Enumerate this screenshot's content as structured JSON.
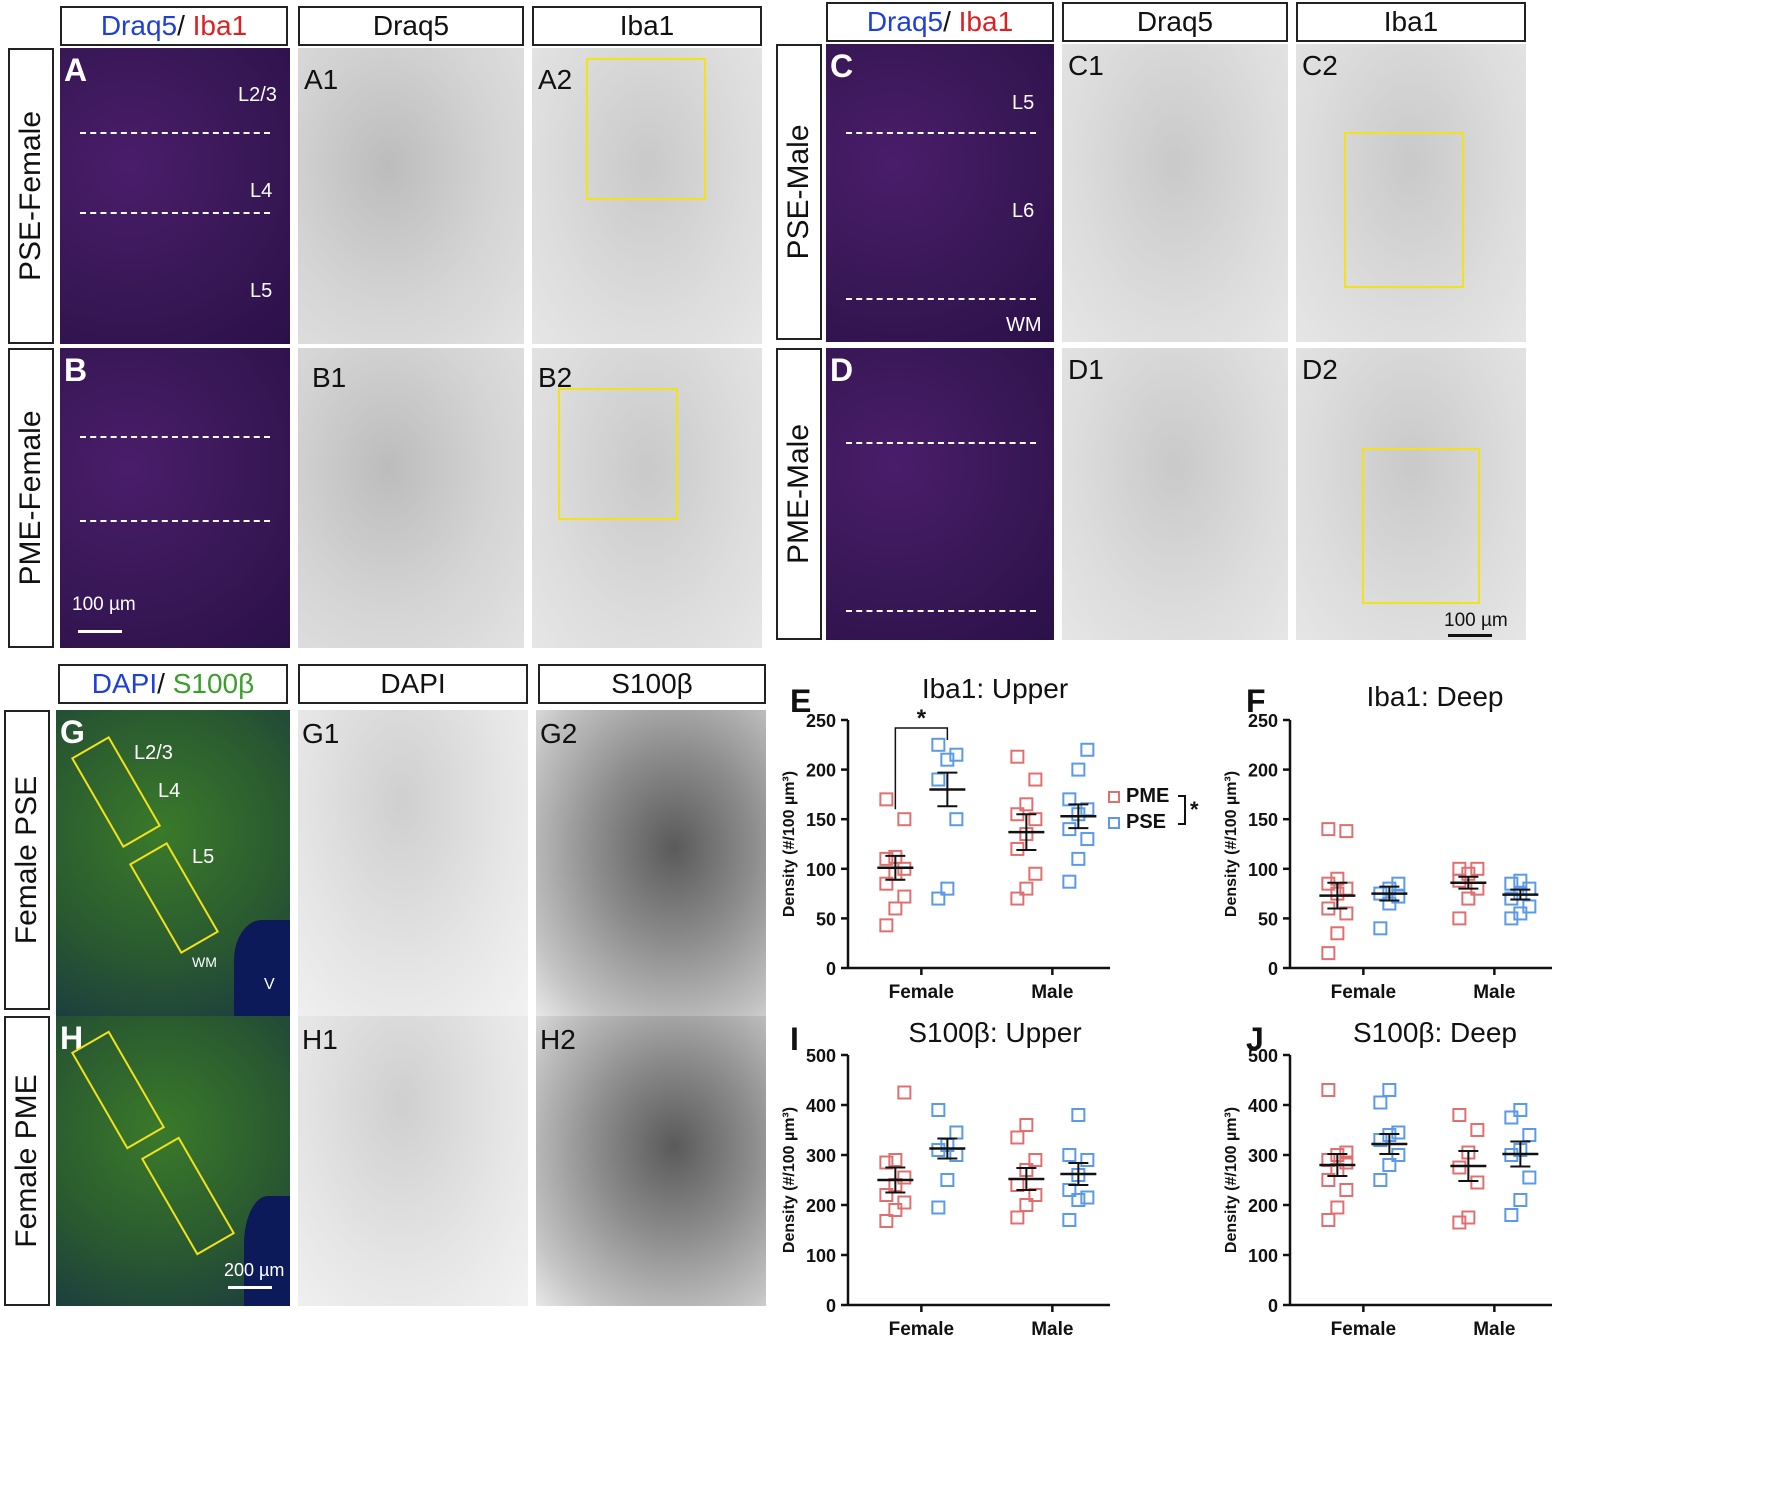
{
  "top_left": {
    "headers": [
      {
        "parts": [
          {
            "text": "Draq5",
            "color": "#1f3fd6"
          },
          {
            "text": "/ ",
            "color": "#111111"
          },
          {
            "text": "Iba1",
            "color": "#e02020"
          }
        ]
      },
      {
        "text": "Draq5"
      },
      {
        "text": "Iba1"
      }
    ],
    "rows": [
      {
        "label": "PSE-Female",
        "panels": [
          "A",
          "A1",
          "A2"
        ],
        "layers": [
          "L2/3",
          "L4",
          "L5"
        ]
      },
      {
        "label": "PME-Female",
        "panels": [
          "B",
          "B1",
          "B2"
        ],
        "layers": []
      }
    ],
    "scale": "100 µm"
  },
  "top_right": {
    "headers": [
      {
        "parts": [
          {
            "text": "Draq5",
            "color": "#1f3fd6"
          },
          {
            "text": "/ ",
            "color": "#111111"
          },
          {
            "text": "Iba1",
            "color": "#e02020"
          }
        ]
      },
      {
        "text": "Draq5"
      },
      {
        "text": "Iba1"
      }
    ],
    "rows": [
      {
        "label": "PSE-Male",
        "panels": [
          "C",
          "C1",
          "C2"
        ],
        "layers": [
          "L5",
          "L6",
          "WM"
        ]
      },
      {
        "label": "PME-Male",
        "panels": [
          "D",
          "D1",
          "D2"
        ],
        "layers": []
      }
    ],
    "scale": "100 µm"
  },
  "bottom_left": {
    "headers": [
      {
        "parts": [
          {
            "text": "DAPI",
            "color": "#1f3fd6"
          },
          {
            "text": "/ ",
            "color": "#111111"
          },
          {
            "text": "S100β",
            "color": "#3aa02a"
          }
        ]
      },
      {
        "text": "DAPI"
      },
      {
        "text": "S100β"
      }
    ],
    "rows": [
      {
        "label": "Female PSE",
        "panels": [
          "G",
          "G1",
          "G2"
        ],
        "layers": [
          "L2/3",
          "L4",
          "L5",
          "WM",
          "V"
        ]
      },
      {
        "label": "Female PME",
        "panels": [
          "H",
          "H1",
          "H2"
        ],
        "layers": []
      }
    ],
    "scale": "200 µm"
  },
  "legend": {
    "items": [
      {
        "name": "PME",
        "color": "#e07070"
      },
      {
        "name": "PSE",
        "color": "#5a9ae6"
      }
    ],
    "sig": "*"
  },
  "chart_data": [
    {
      "letter": "E",
      "type": "scatter",
      "title": "Iba1: Upper",
      "ylabel": "Density (#/100 µm³)",
      "ylim": [
        0,
        250
      ],
      "yticks": [
        0,
        50,
        100,
        150,
        200,
        250
      ],
      "categories": [
        "Female",
        "Male"
      ],
      "series": [
        {
          "name": "PME",
          "color": "#e07070",
          "points": [
            [
              43,
              60,
              72,
              85,
              95,
              100,
              110,
              112,
              150,
              170
            ],
            [
              70,
              80,
              95,
              120,
              135,
              150,
              155,
              165,
              190,
              213
            ]
          ],
          "mean": [
            101,
            137
          ],
          "sem": [
            12,
            18
          ]
        },
        {
          "name": "PSE",
          "color": "#5a9ae6",
          "points": [
            [
              70,
              80,
              150,
              190,
              210,
              215,
              225
            ],
            [
              87,
              110,
              130,
              140,
              155,
              160,
              170,
              200,
              220
            ]
          ],
          "mean": [
            180,
            153
          ],
          "sem": [
            17,
            12
          ]
        }
      ],
      "annotation": "*"
    },
    {
      "letter": "F",
      "type": "scatter",
      "title": "Iba1: Deep",
      "ylabel": "Density (#/100 µm³)",
      "ylim": [
        0,
        250
      ],
      "yticks": [
        0,
        50,
        100,
        150,
        200,
        250
      ],
      "categories": [
        "Female",
        "Male"
      ],
      "series": [
        {
          "name": "PME",
          "color": "#e07070",
          "points": [
            [
              15,
              35,
              55,
              60,
              75,
              80,
              85,
              90,
              138,
              140
            ],
            [
              50,
              70,
              80,
              88,
              95,
              100,
              100
            ]
          ],
          "mean": [
            73,
            86
          ],
          "sem": [
            13,
            6
          ]
        },
        {
          "name": "PSE",
          "color": "#5a9ae6",
          "points": [
            [
              40,
              65,
              72,
              75,
              80,
              85
            ],
            [
              50,
              55,
              62,
              70,
              75,
              80,
              85,
              88
            ]
          ],
          "mean": [
            75,
            74
          ],
          "sem": [
            7,
            5
          ]
        }
      ]
    },
    {
      "letter": "I",
      "type": "scatter",
      "title": "S100β: Upper",
      "ylabel": "Density (#/100 µm³)",
      "ylim": [
        0,
        500
      ],
      "yticks": [
        0,
        100,
        200,
        300,
        400,
        500
      ],
      "categories": [
        "Female",
        "Male"
      ],
      "series": [
        {
          "name": "PME",
          "color": "#e07070",
          "points": [
            [
              168,
              190,
              205,
              220,
              240,
              255,
              285,
              290,
              425
            ],
            [
              175,
              200,
              220,
              240,
              270,
              290,
              335,
              360
            ]
          ],
          "mean": [
            250,
            252
          ],
          "sem": [
            25,
            22
          ]
        },
        {
          "name": "PSE",
          "color": "#5a9ae6",
          "points": [
            [
              195,
              250,
              300,
              310,
              320,
              345,
              390
            ],
            [
              170,
              210,
              215,
              230,
              260,
              290,
              300,
              380
            ]
          ],
          "mean": [
            313,
            262
          ],
          "sem": [
            20,
            22
          ]
        }
      ]
    },
    {
      "letter": "J",
      "type": "scatter",
      "title": "S100β: Deep",
      "ylabel": "Density (#/100 µm³)",
      "ylim": [
        0,
        500
      ],
      "yticks": [
        0,
        100,
        200,
        300,
        400,
        500
      ],
      "categories": [
        "Female",
        "Male"
      ],
      "series": [
        {
          "name": "PME",
          "color": "#e07070",
          "points": [
            [
              170,
              195,
              230,
              250,
              270,
              285,
              290,
              300,
              305,
              430
            ],
            [
              165,
              175,
              245,
              275,
              305,
              350,
              380
            ]
          ],
          "mean": [
            280,
            278
          ],
          "sem": [
            22,
            30
          ]
        },
        {
          "name": "PSE",
          "color": "#5a9ae6",
          "points": [
            [
              250,
              280,
              300,
              330,
              340,
              345,
              405,
              430
            ],
            [
              180,
              210,
              255,
              300,
              310,
              340,
              375,
              390
            ]
          ],
          "mean": [
            322,
            302
          ],
          "sem": [
            20,
            25
          ]
        }
      ]
    }
  ]
}
